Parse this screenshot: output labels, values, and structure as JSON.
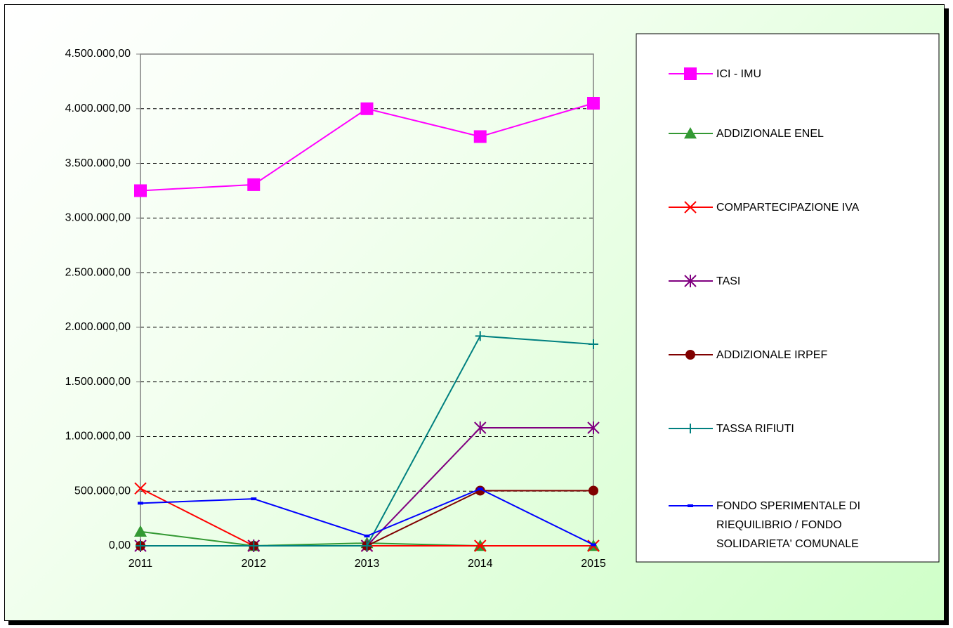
{
  "chart_data": {
    "type": "line",
    "categories": [
      "2011",
      "2012",
      "2013",
      "2014",
      "2015"
    ],
    "ylim": [
      0,
      4500000
    ],
    "yticks": [
      {
        "value": 0,
        "label": "0,00"
      },
      {
        "value": 500000,
        "label": "500.000,00"
      },
      {
        "value": 1000000,
        "label": "1.000.000,00"
      },
      {
        "value": 1500000,
        "label": "1.500.000,00"
      },
      {
        "value": 2000000,
        "label": "2.000.000,00"
      },
      {
        "value": 2500000,
        "label": "2.500.000,00"
      },
      {
        "value": 3000000,
        "label": "3.000.000,00"
      },
      {
        "value": 3500000,
        "label": "3.500.000,00"
      },
      {
        "value": 4000000,
        "label": "4.000.000,00"
      },
      {
        "value": 4500000,
        "label": "4.500.000,00"
      }
    ],
    "grid": true,
    "legend": "right",
    "series": [
      {
        "name": "ICI - IMU",
        "color": "#ff00ff",
        "marker": "square",
        "values": [
          3250000,
          3305000,
          4000000,
          3745000,
          4050000
        ]
      },
      {
        "name": "ADDIZIONALE ENEL",
        "color": "#339933",
        "marker": "triangle",
        "values": [
          130000,
          0,
          25000,
          0,
          0
        ]
      },
      {
        "name": "COMPARTECIPAZIONE IVA",
        "color": "#ff0000",
        "marker": "x",
        "values": [
          525000,
          0,
          0,
          0,
          0
        ]
      },
      {
        "name": "TASI",
        "color": "#800080",
        "marker": "star",
        "values": [
          0,
          0,
          0,
          1080000,
          1080000
        ]
      },
      {
        "name": "ADDIZIONALE IRPEF",
        "color": "#800000",
        "marker": "circle",
        "values": [
          0,
          0,
          0,
          505000,
          505000
        ]
      },
      {
        "name": "TASSA RIFIUTI",
        "color": "#008080",
        "marker": "plus",
        "values": [
          0,
          0,
          0,
          1920000,
          1845000
        ]
      },
      {
        "name": "FONDO SPERIMENTALE DI RIEQUILIBRIO / FONDO SOLIDARIETA' COMUNALE",
        "color": "#0000ff",
        "marker": "dash",
        "values": [
          390000,
          430000,
          90000,
          520000,
          10000
        ]
      }
    ]
  }
}
